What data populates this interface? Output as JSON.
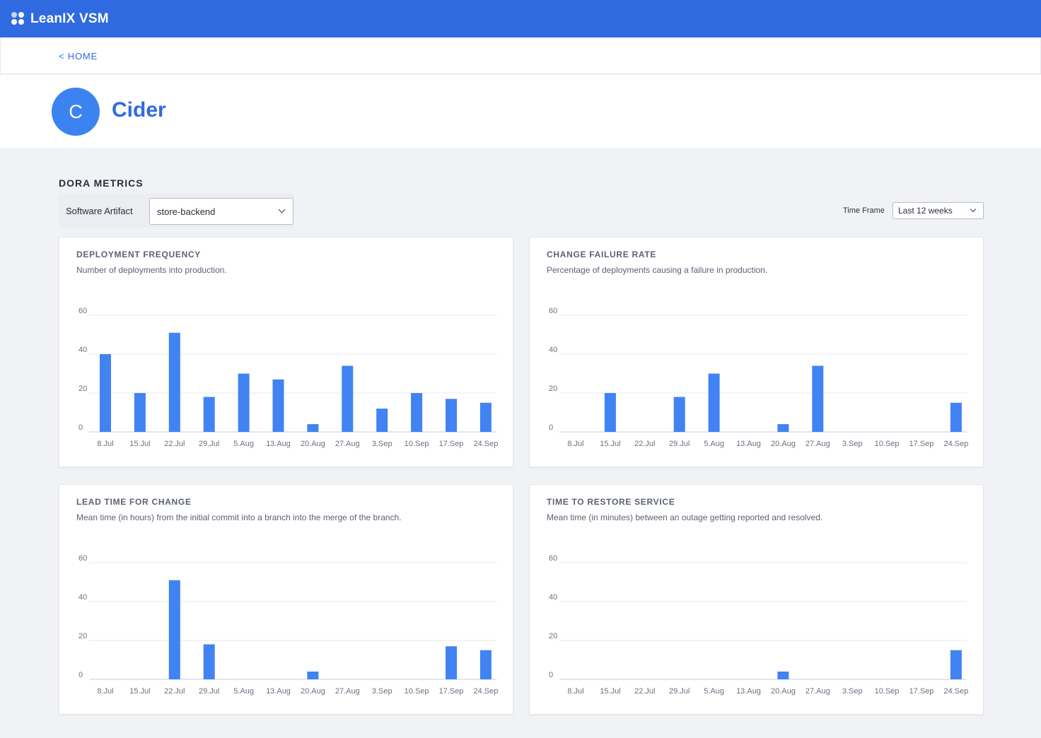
{
  "app": {
    "brand": "LeanIX VSM"
  },
  "nav": {
    "home_link": "< HOME"
  },
  "header": {
    "avatar_letter": "C",
    "title": "Cider"
  },
  "dora": {
    "section_title": "DORA METRICS",
    "artifact_label": "Software Artifact",
    "artifact_value": "store-backend",
    "timeframe_label": "Time Frame",
    "timeframe_value": "Last 12 weeks"
  },
  "colors": {
    "brand": "#2f6ae1",
    "bar": "#4183f2",
    "avatar": "#3b83f0"
  },
  "cards": [
    {
      "title": "DEPLOYMENT FREQUENCY",
      "description": "Number of deployments into production."
    },
    {
      "title": "CHANGE FAILURE RATE",
      "description": "Percentage of deployments causing a failure in production."
    },
    {
      "title": "LEAD TIME FOR CHANGE",
      "description": "Mean time (in hours) from the initial commit into a branch into the merge of the branch."
    },
    {
      "title": "TIME TO RESTORE SERVICE",
      "description": "Mean time (in minutes) between an outage getting reported and resolved."
    }
  ],
  "chart_data": [
    {
      "type": "bar",
      "title": "DEPLOYMENT FREQUENCY",
      "categories": [
        "8.Jul",
        "15.Jul",
        "22.Jul",
        "29.Jul",
        "5.Aug",
        "13.Aug",
        "20.Aug",
        "27.Aug",
        "3.Sep",
        "10.Sep",
        "17.Sep",
        "24.Sep"
      ],
      "values": [
        40,
        20,
        51,
        18,
        30,
        27,
        4,
        34,
        12,
        20,
        17,
        15
      ],
      "yticks": [
        0,
        20,
        40,
        60
      ],
      "ylim": [
        0,
        60
      ],
      "grid": true
    },
    {
      "type": "bar",
      "title": "CHANGE FAILURE RATE",
      "categories": [
        "8.Jul",
        "15.Jul",
        "22.Jul",
        "29.Jul",
        "5.Aug",
        "13.Aug",
        "20.Aug",
        "27.Aug",
        "3.Sep",
        "10.Sep",
        "17.Sep",
        "24.Sep"
      ],
      "values": [
        0,
        20,
        0,
        18,
        30,
        0,
        4,
        34,
        0,
        0,
        0,
        15
      ],
      "yticks": [
        0,
        20,
        40,
        60
      ],
      "ylim": [
        0,
        60
      ],
      "grid": true
    },
    {
      "type": "bar",
      "title": "LEAD TIME FOR CHANGE",
      "categories": [
        "8.Jul",
        "15.Jul",
        "22.Jul",
        "29.Jul",
        "5.Aug",
        "13.Aug",
        "20.Aug",
        "27.Aug",
        "3.Sep",
        "10.Sep",
        "17.Sep",
        "24.Sep"
      ],
      "values": [
        0,
        0,
        51,
        18,
        0,
        0,
        4,
        0,
        0,
        0,
        17,
        15
      ],
      "yticks": [
        0,
        20,
        40,
        60
      ],
      "ylim": [
        0,
        60
      ],
      "grid": true
    },
    {
      "type": "bar",
      "title": "TIME TO RESTORE SERVICE",
      "categories": [
        "8.Jul",
        "15.Jul",
        "22.Jul",
        "29.Jul",
        "5.Aug",
        "13.Aug",
        "20.Aug",
        "27.Aug",
        "3.Sep",
        "10.Sep",
        "17.Sep",
        "24.Sep"
      ],
      "values": [
        0,
        0,
        0,
        0,
        0,
        0,
        4,
        0,
        0,
        0,
        0,
        15
      ],
      "yticks": [
        0,
        20,
        40,
        60
      ],
      "ylim": [
        0,
        60
      ],
      "grid": true
    }
  ]
}
